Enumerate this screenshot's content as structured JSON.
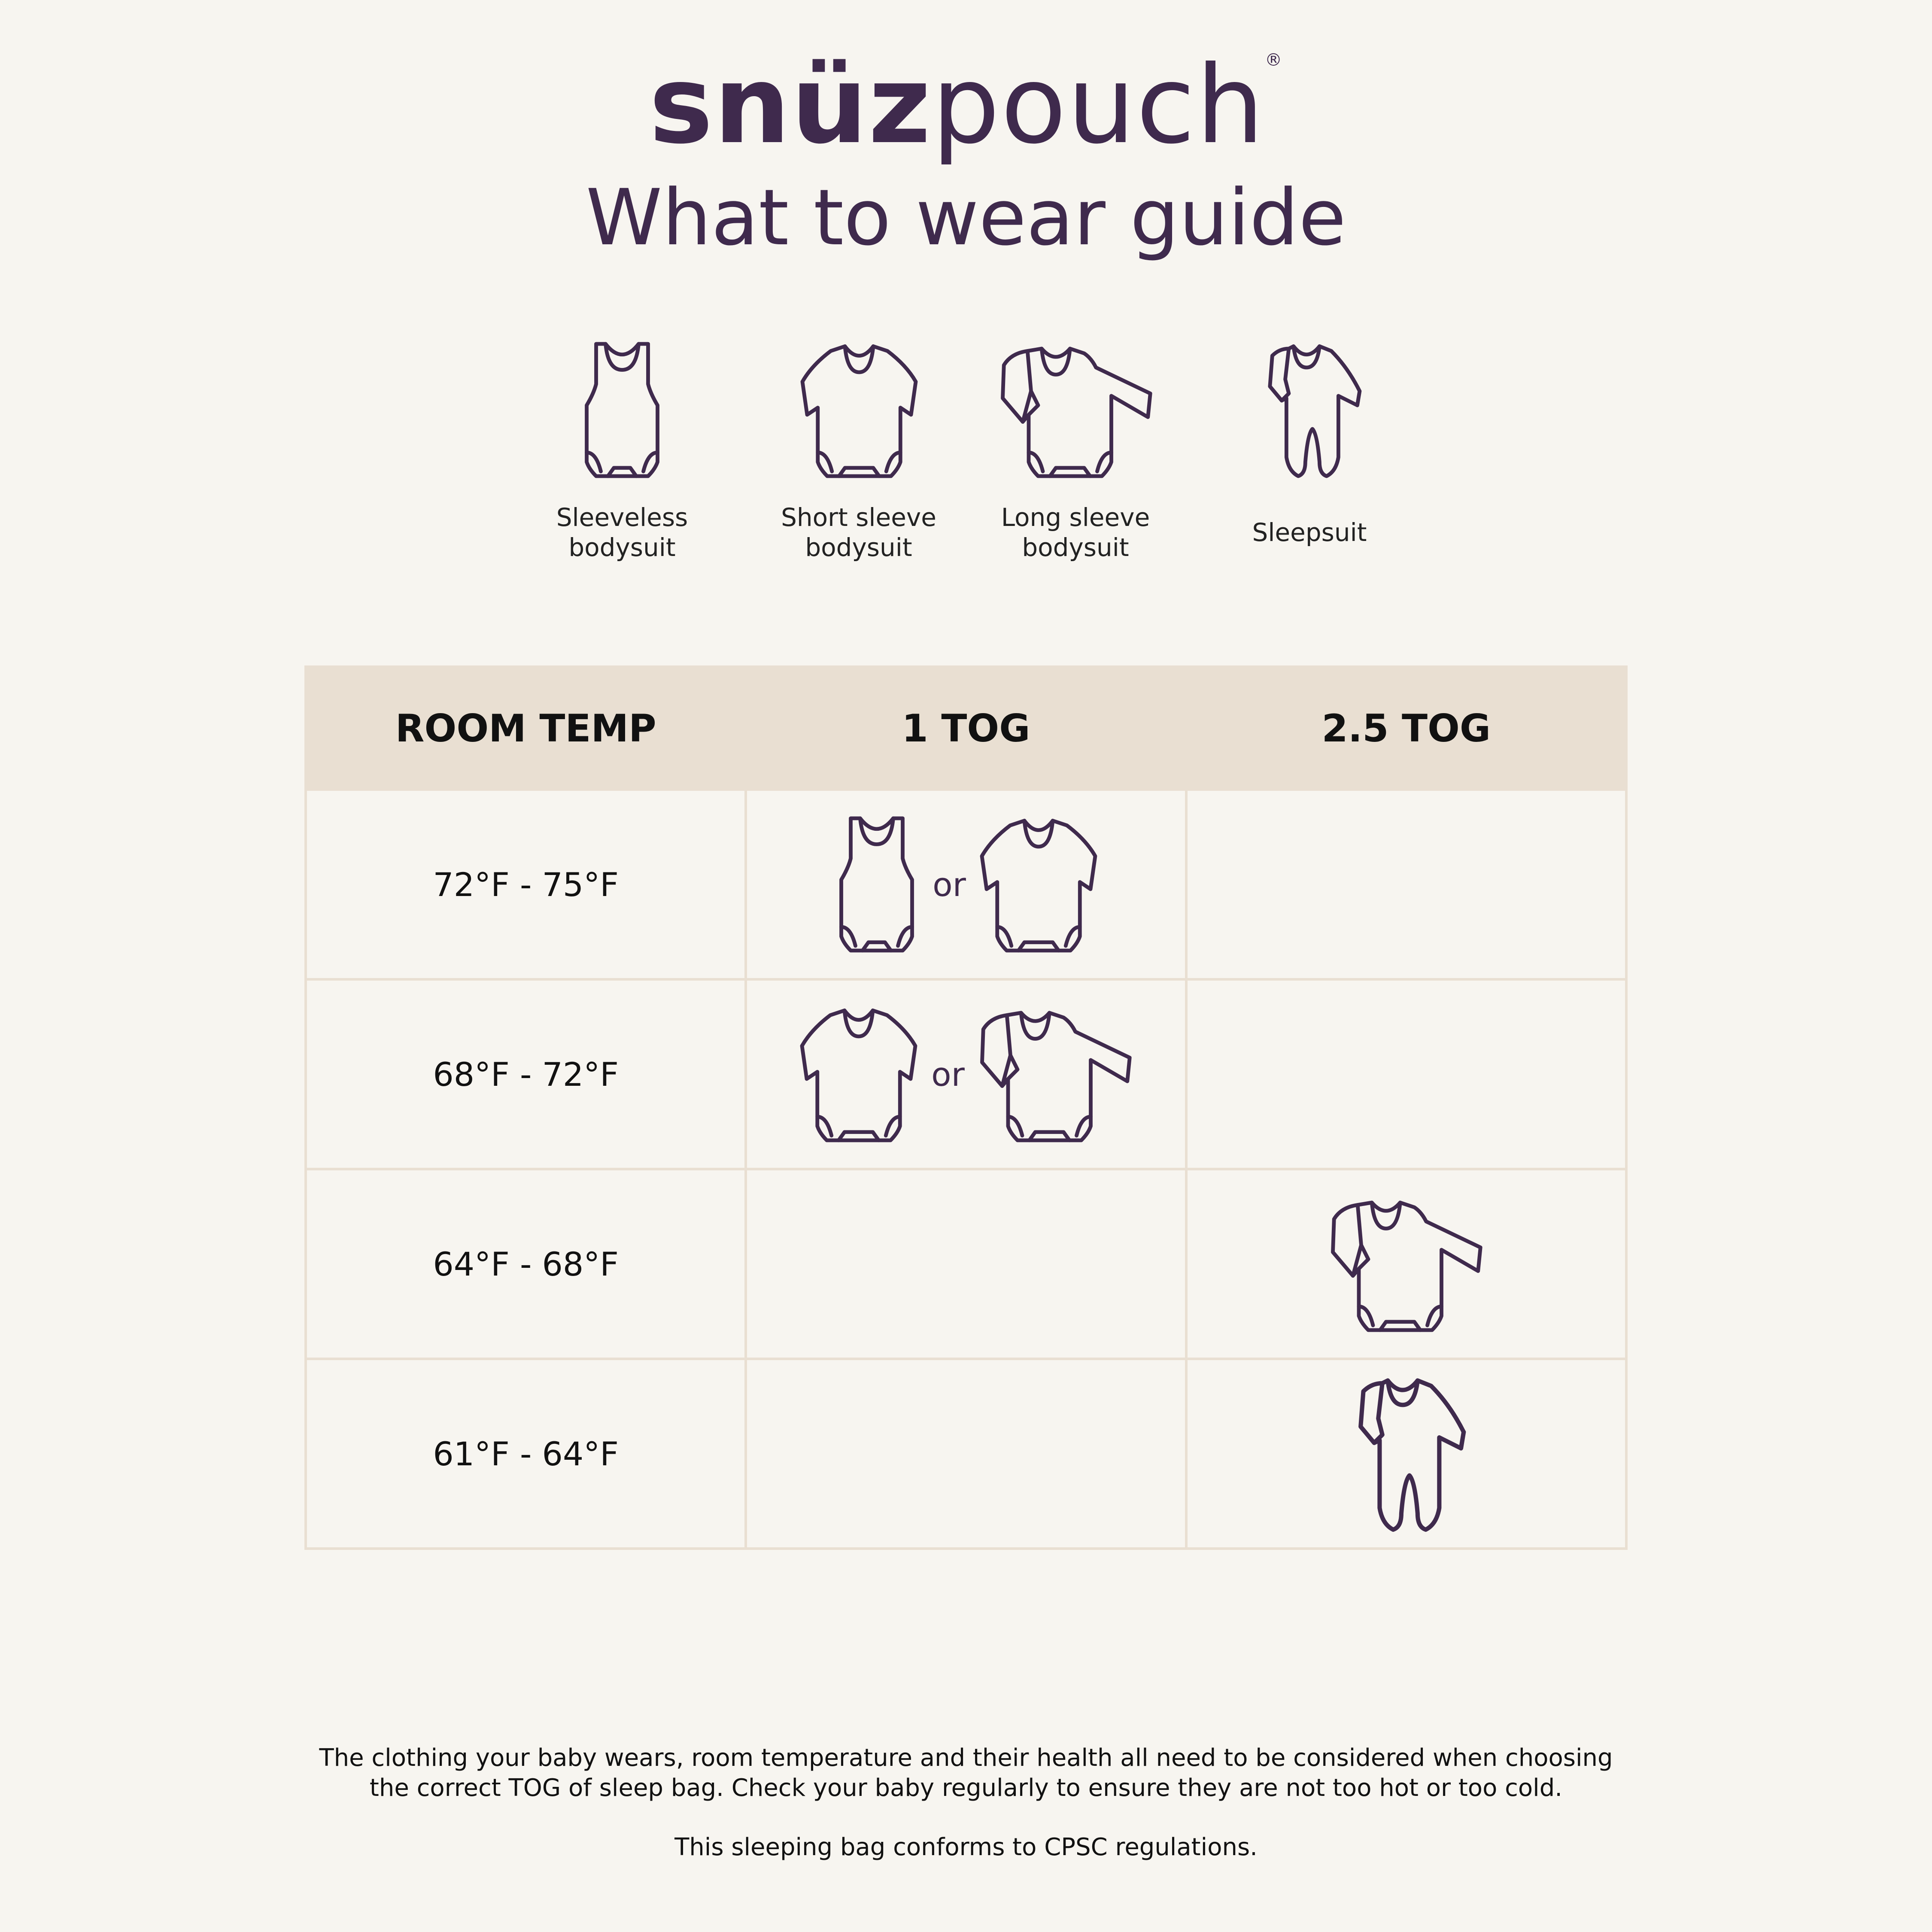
{
  "brand": {
    "bold": "snüz",
    "light": "pouch",
    "mark": "®"
  },
  "title": "What to wear guide",
  "colors": {
    "brand": "#3f2a4d",
    "background": "#f7f5f0",
    "header": "#e9dfd2"
  },
  "legend": [
    {
      "icon": "sleeveless-bodysuit-icon",
      "line1": "Sleeveless",
      "line2": "bodysuit"
    },
    {
      "icon": "short-sleeve-bodysuit-icon",
      "line1": "Short sleeve",
      "line2": "bodysuit"
    },
    {
      "icon": "long-sleeve-bodysuit-icon",
      "line1": "Long sleeve",
      "line2": "bodysuit"
    },
    {
      "icon": "sleepsuit-icon",
      "line1": "Sleepsuit",
      "line2": ""
    }
  ],
  "table": {
    "headers": [
      "ROOM TEMP",
      "1 TOG",
      "2.5 TOG"
    ],
    "or_label": "or",
    "rows": [
      {
        "temp": "72°F - 75°F",
        "tog1": [
          "sleeveless-bodysuit",
          "short-sleeve-bodysuit"
        ],
        "tog25": []
      },
      {
        "temp": "68°F - 72°F",
        "tog1": [
          "short-sleeve-bodysuit",
          "long-sleeve-bodysuit"
        ],
        "tog25": []
      },
      {
        "temp": "64°F - 68°F",
        "tog1": [],
        "tog25": [
          "long-sleeve-bodysuit"
        ]
      },
      {
        "temp": "61°F - 64°F",
        "tog1": [],
        "tog25": [
          "sleepsuit"
        ]
      }
    ]
  },
  "footer": {
    "line1": "The clothing your baby wears, room temperature and their health all need to be considered when choosing",
    "line2": "the correct TOG of sleep bag. Check your baby regularly to ensure they are not too hot or too cold.",
    "line3": "This sleeping bag conforms to CPSC regulations."
  }
}
